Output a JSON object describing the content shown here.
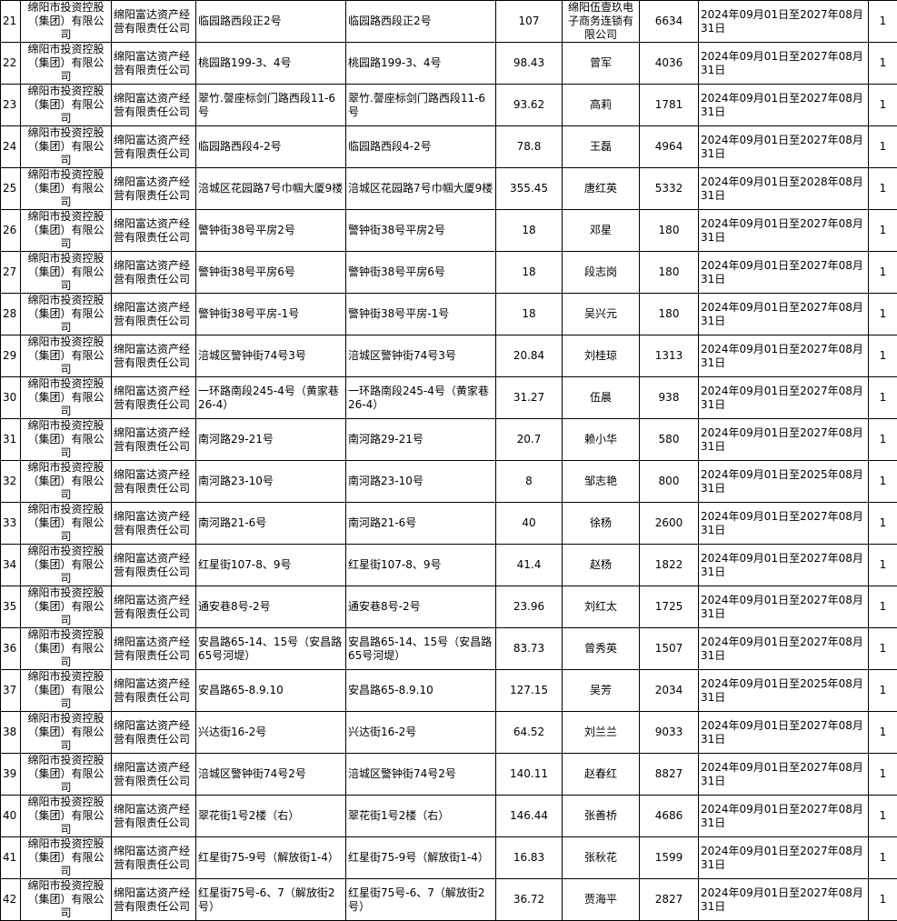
{
  "rows": [
    {
      "no": "21",
      "owner": "绵阳市投资控股（集团）有限公司",
      "operator": "绵阳富达资产经营有限责任公司",
      "address": "临园路西段正2号",
      "location": "临园路西段正2号",
      "area": "107",
      "tenant": "绵阳伍壹玖电子商务连锁有限公司",
      "rent": "6634",
      "period": "2024年09月01日至2027年08月31日",
      "count": "1"
    },
    {
      "no": "22",
      "owner": "绵阳市投资控股（集团）有限公司",
      "operator": "绵阳富达资产经营有限责任公司",
      "address": "桃园路199-3、4号",
      "location": "桃园路199-3、4号",
      "area": "98.43",
      "tenant": "曾军",
      "rent": "4036",
      "period": "2024年09月01日至2027年08月31日",
      "count": "1"
    },
    {
      "no": "23",
      "owner": "绵阳市投资控股（集团）有限公司",
      "operator": "绵阳富达资产经营有限责任公司",
      "address": "翠竹.謦座标剑门路西段11-6号",
      "location": "翠竹.謦座标剑门路西段11-6号",
      "area": "93.62",
      "tenant": "高莉",
      "rent": "1781",
      "period": "2024年09月01日至2027年08月31日",
      "count": "1"
    },
    {
      "no": "24",
      "owner": "绵阳市投资控股（集团）有限公司",
      "operator": "绵阳富达资产经营有限责任公司",
      "address": "临园路西段4-2号",
      "location": "临园路西段4-2号",
      "area": "78.8",
      "tenant": "王磊",
      "rent": "4964",
      "period": "2024年09月01日至2027年08月31日",
      "count": "1"
    },
    {
      "no": "25",
      "owner": "绵阳市投资控股（集团）有限公司",
      "operator": "绵阳富达资产经营有限责任公司",
      "address": "涪城区花园路7号巾帼大厦9楼",
      "location": "涪城区花园路7号巾帼大厦9楼",
      "area": "355.45",
      "tenant": "唐红英",
      "rent": "5332",
      "period": "2024年09月01日至2028年08月31日",
      "count": "1"
    },
    {
      "no": "26",
      "owner": "绵阳市投资控股（集团）有限公司",
      "operator": "绵阳富达资产经营有限责任公司",
      "address": "警钟街38号平房2号",
      "location": "警钟街38号平房2号",
      "area": "18",
      "tenant": "邓星",
      "rent": "180",
      "period": "2024年09月01日至2027年08月31日",
      "count": "1"
    },
    {
      "no": "27",
      "owner": "绵阳市投资控股（集团）有限公司",
      "operator": "绵阳富达资产经营有限责任公司",
      "address": "警钟街38号平房6号",
      "location": "警钟街38号平房6号",
      "area": "18",
      "tenant": "段志岗",
      "rent": "180",
      "period": "2024年09月01日至2027年08月31日",
      "count": "1"
    },
    {
      "no": "28",
      "owner": "绵阳市投资控股（集团）有限公司",
      "operator": "绵阳富达资产经营有限责任公司",
      "address": "警钟街38号平房-1号",
      "location": "警钟街38号平房-1号",
      "area": "18",
      "tenant": "吴兴元",
      "rent": "180",
      "period": "2024年09月01日至2027年08月31日",
      "count": "1"
    },
    {
      "no": "29",
      "owner": "绵阳市投资控股（集团）有限公司",
      "operator": "绵阳富达资产经营有限责任公司",
      "address": "涪城区警钟街74号3号",
      "location": "涪城区警钟街74号3号",
      "area": "20.84",
      "tenant": "刘桂琼",
      "rent": "1313",
      "period": "2024年09月01日至2027年08月31日",
      "count": "1"
    },
    {
      "no": "30",
      "owner": "绵阳市投资控股（集团）有限公司",
      "operator": "绵阳富达资产经营有限责任公司",
      "address": "一环路南段245-4号（黄家巷26-4）",
      "location": "一环路南段245-4号（黄家巷26-4）",
      "area": "31.27",
      "tenant": "伍晨",
      "rent": "938",
      "period": "2024年09月01日至2027年08月31日",
      "count": "1"
    },
    {
      "no": "31",
      "owner": "绵阳市投资控股（集团）有限公司",
      "operator": "绵阳富达资产经营有限责任公司",
      "address": "南河路29-21号",
      "location": "南河路29-21号",
      "area": "20.7",
      "tenant": "赖小华",
      "rent": "580",
      "period": "2024年09月01日至2027年08月31日",
      "count": "1"
    },
    {
      "no": "32",
      "owner": "绵阳市投资控股（集团）有限公司",
      "operator": "绵阳富达资产经营有限责任公司",
      "address": "南河路23-10号",
      "location": "南河路23-10号",
      "area": "8",
      "tenant": "邹志艳",
      "rent": "800",
      "period": "2024年09月01日至2025年08月31日",
      "count": "1"
    },
    {
      "no": "33",
      "owner": "绵阳市投资控股（集团）有限公司",
      "operator": "绵阳富达资产经营有限责任公司",
      "address": "南河路21-6号",
      "location": "南河路21-6号",
      "area": "40",
      "tenant": "徐杨",
      "rent": "2600",
      "period": "2024年09月01日至2027年08月31日",
      "count": "1"
    },
    {
      "no": "34",
      "owner": "绵阳市投资控股（集团）有限公司",
      "operator": "绵阳富达资产经营有限责任公司",
      "address": "红星街107-8、9号",
      "location": "红星街107-8、9号",
      "area": "41.4",
      "tenant": "赵杨",
      "rent": "1822",
      "period": "2024年09月01日至2027年08月31日",
      "count": "1"
    },
    {
      "no": "35",
      "owner": "绵阳市投资控股（集团）有限公司",
      "operator": "绵阳富达资产经营有限责任公司",
      "address": "通安巷8号-2号",
      "location": "通安巷8号-2号",
      "area": "23.96",
      "tenant": "刘红太",
      "rent": "1725",
      "period": "2024年09月01日至2027年08月31日",
      "count": "1"
    },
    {
      "no": "36",
      "owner": "绵阳市投资控股（集团）有限公司",
      "operator": "绵阳富达资产经营有限责任公司",
      "address": "安昌路65-14、15号（安昌路65号河堤）",
      "location": "安昌路65-14、15号（安昌路65号河堤）",
      "area": "83.73",
      "tenant": "曾秀英",
      "rent": "1507",
      "period": "2024年09月01日至2027年08月31日",
      "count": "1"
    },
    {
      "no": "37",
      "owner": "绵阳市投资控股（集团）有限公司",
      "operator": "绵阳富达资产经营有限责任公司",
      "address": "安昌路65-8.9.10",
      "location": "安昌路65-8.9.10",
      "area": "127.15",
      "tenant": "吴芳",
      "rent": "2034",
      "period": "2024年09月01日至2025年08月31日",
      "count": "1"
    },
    {
      "no": "38",
      "owner": "绵阳市投资控股（集团）有限公司",
      "operator": "绵阳富达资产经营有限责任公司",
      "address": "兴达街16-2号",
      "location": "兴达街16-2号",
      "area": "64.52",
      "tenant": "刘兰兰",
      "rent": "9033",
      "period": "2024年09月01日至2027年08月31日",
      "count": "1"
    },
    {
      "no": "39",
      "owner": "绵阳市投资控股（集团）有限公司",
      "operator": "绵阳富达资产经营有限责任公司",
      "address": "涪城区警钟街74号2号",
      "location": "涪城区警钟街74号2号",
      "area": "140.11",
      "tenant": "赵春红",
      "rent": "8827",
      "period": "2024年09月01日至2027年08月31日",
      "count": "1"
    },
    {
      "no": "40",
      "owner": "绵阳市投资控股（集团）有限公司",
      "operator": "绵阳富达资产经营有限责任公司",
      "address": "翠花街1号2楼（右）",
      "location": "翠花街1号2楼（右）",
      "area": "146.44",
      "tenant": "张善桥",
      "rent": "4686",
      "period": "2024年09月01日至2027年08月31日",
      "count": "1"
    },
    {
      "no": "41",
      "owner": "绵阳市投资控股（集团）有限公司",
      "operator": "绵阳富达资产经营有限责任公司",
      "address": "红星街75-9号（解放街1-4）",
      "location": "红星街75-9号（解放街1-4）",
      "area": "16.83",
      "tenant": "张秋花",
      "rent": "1599",
      "period": "2024年09月01日至2027年08月31日",
      "count": "1"
    },
    {
      "no": "42",
      "owner": "绵阳市投资控股（集团）有限公司",
      "operator": "绵阳富达资产经营有限责任公司",
      "address": "红星街75号-6、7（解放街2号）",
      "location": "红星街75号-6、7（解放街2号）",
      "area": "36.72",
      "tenant": "贾海平",
      "rent": "2827",
      "period": "2024年09月01日至2027年08月31日",
      "count": "1"
    }
  ]
}
